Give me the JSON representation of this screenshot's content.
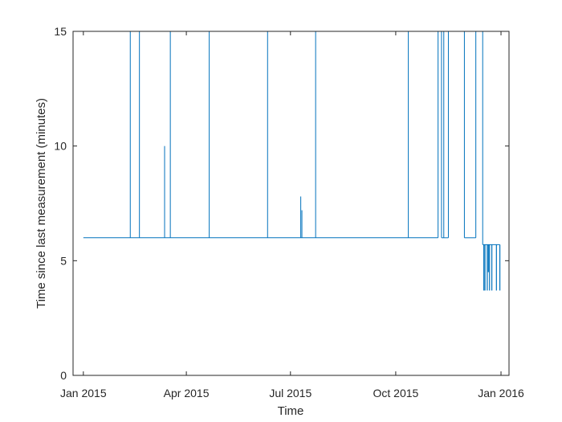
{
  "chart_data": {
    "type": "line",
    "title": "",
    "xlabel": "Time",
    "ylabel": "Time since last measurement (minutes)",
    "x_range": [
      "2014-12-23",
      "2016-01-08"
    ],
    "ylim": [
      0,
      15
    ],
    "grid": false,
    "legend": "none",
    "x_ticks": [
      {
        "value": "2015-01-01",
        "label": "Jan 2015"
      },
      {
        "value": "2015-04-01",
        "label": "Apr 2015"
      },
      {
        "value": "2015-07-01",
        "label": "Jul 2015"
      },
      {
        "value": "2015-10-01",
        "label": "Oct 2015"
      },
      {
        "value": "2016-01-01",
        "label": "Jan 2016"
      }
    ],
    "y_ticks": [
      {
        "value": 0,
        "label": "0"
      },
      {
        "value": 5,
        "label": "5"
      },
      {
        "value": 10,
        "label": "10"
      },
      {
        "value": 15,
        "label": "15"
      }
    ],
    "line_color": "#0072bd",
    "baseline_minutes": 6,
    "gap_spikes": [
      {
        "date": "2015-02-11",
        "value": 15
      },
      {
        "date": "2015-02-19",
        "value": 15
      },
      {
        "date": "2015-03-13",
        "value": 10
      },
      {
        "date": "2015-03-18",
        "value": 15
      },
      {
        "date": "2015-04-21",
        "value": 15
      },
      {
        "date": "2015-06-11",
        "value": 15
      },
      {
        "date": "2015-07-10",
        "value": 7.8
      },
      {
        "date": "2015-07-11",
        "value": 7.2
      },
      {
        "date": "2015-07-23",
        "value": 15
      },
      {
        "date": "2015-10-12",
        "value": 15
      },
      {
        "date": "2015-11-12",
        "value": 15
      }
    ],
    "segments": [
      {
        "start": "2015-01-01",
        "end": "2015-11-07",
        "value": 6
      },
      {
        "start": "2015-11-07",
        "end": "2015-11-10",
        "value": 15
      },
      {
        "start": "2015-11-10",
        "end": "2015-11-16",
        "value": 6
      },
      {
        "start": "2015-11-16",
        "end": "2015-11-30",
        "value": 15
      },
      {
        "start": "2015-11-30",
        "end": "2015-12-10",
        "value": 6
      },
      {
        "start": "2015-12-10",
        "end": "2015-12-16",
        "value": 15
      },
      {
        "start": "2015-12-16",
        "end": "2015-12-31",
        "value": 5.7
      }
    ],
    "dips": [
      {
        "date": "2015-12-17",
        "value": 3.7
      },
      {
        "date": "2015-12-18",
        "value": 3.7
      },
      {
        "date": "2015-12-20",
        "value": 3.7
      },
      {
        "date": "2015-12-21",
        "value": 4.5
      },
      {
        "date": "2015-12-22",
        "value": 3.7
      },
      {
        "date": "2015-12-24",
        "value": 3.7
      },
      {
        "date": "2015-12-28",
        "value": 3.7
      },
      {
        "date": "2015-12-31",
        "value": 3.7
      }
    ]
  }
}
